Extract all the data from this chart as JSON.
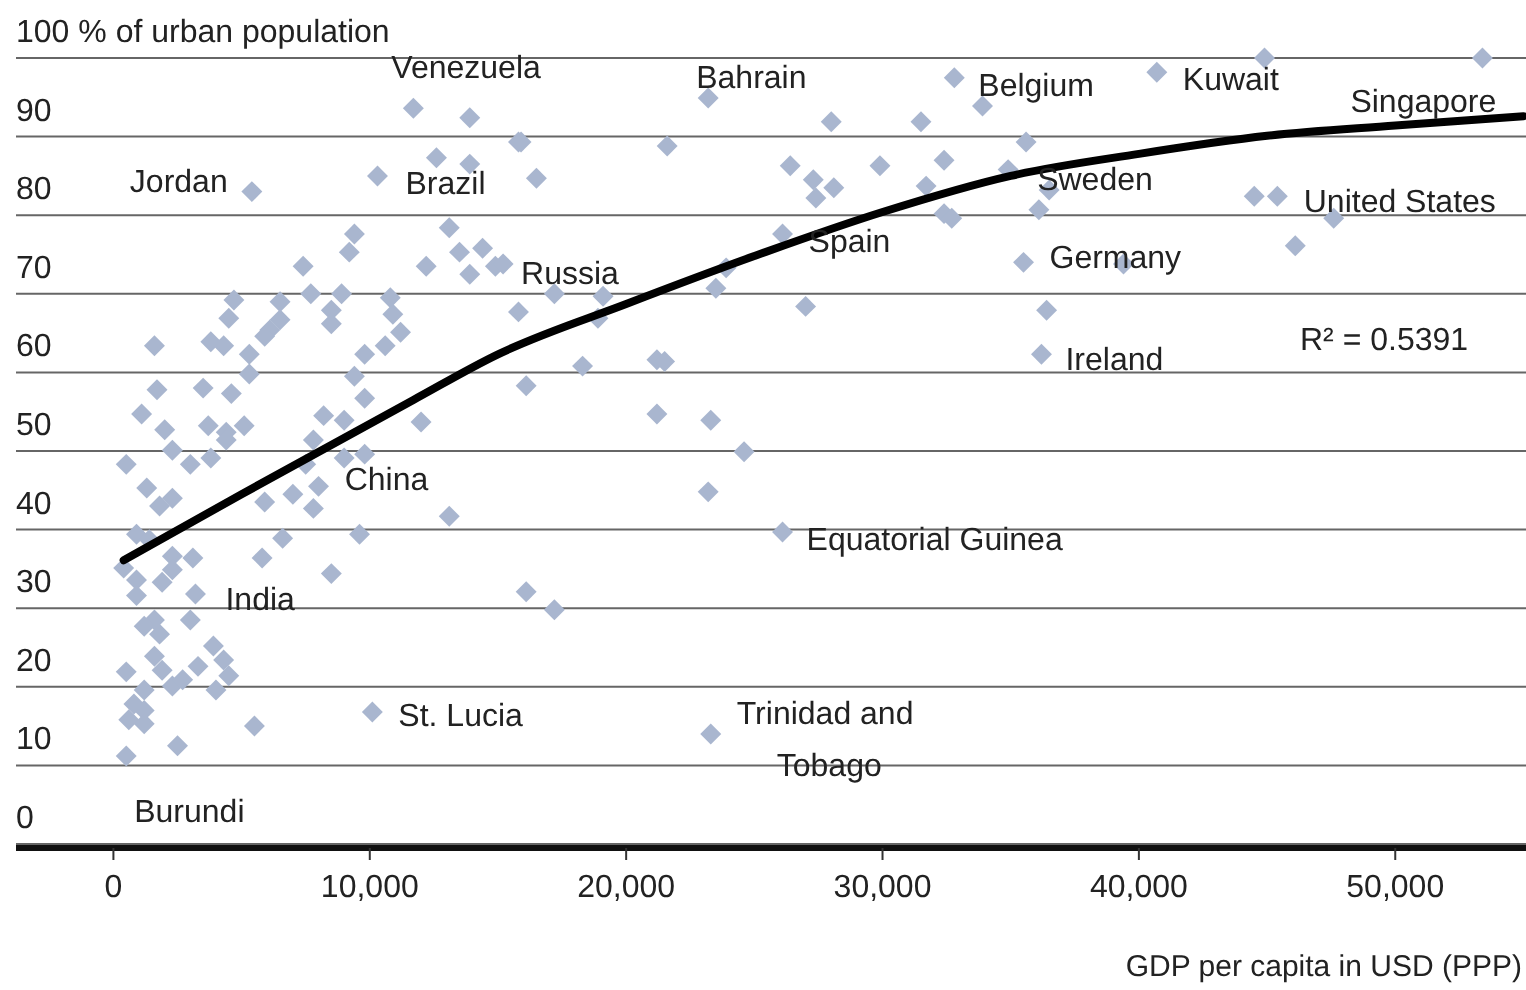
{
  "chart_data": {
    "type": "scatter",
    "xlabel": "GDP per capita in USD (PPP)",
    "xlim": [
      -3800,
      55100
    ],
    "xticks": [
      {
        "value": 0,
        "label": "0"
      },
      {
        "value": 10000,
        "label": "10,000"
      },
      {
        "value": 20000,
        "label": "20,000"
      },
      {
        "value": 30000,
        "label": "30,000"
      },
      {
        "value": 40000,
        "label": "40,000"
      },
      {
        "value": 50000,
        "label": "50,000"
      }
    ],
    "ylim": [
      0,
      100
    ],
    "yticks": [
      0,
      10,
      20,
      30,
      40,
      50,
      60,
      70,
      80,
      90,
      {
        "value": 100,
        "label": "100 % of urban population"
      }
    ],
    "grid": "y",
    "series": [
      {
        "marker": "diamond",
        "color": "#a9b6cf",
        "x": [
          11700,
          13900,
          15800,
          12600,
          13900,
          10300,
          5400,
          13100,
          9400,
          9200,
          13500,
          14400,
          12200,
          13900,
          14900,
          15200,
          7400,
          7700,
          8900,
          4700,
          6500,
          10800,
          8500,
          10900,
          4500,
          8500,
          6500,
          6100,
          5900,
          11200,
          1600,
          3800,
          4300,
          5300,
          10600,
          9800,
          5300,
          9400,
          1700,
          3500,
          4600,
          9800,
          1100,
          3700,
          5100,
          8200,
          9000,
          12000,
          2000,
          4400,
          2300,
          4400,
          7800,
          500,
          3000,
          3800,
          7500,
          9000,
          9800,
          1300,
          2300,
          1800,
          5900,
          7000,
          8000,
          7800,
          13100,
          900,
          1400,
          6600,
          9600,
          400,
          2300,
          3100,
          5800,
          2300,
          1900,
          900,
          8500,
          900,
          3200,
          1600,
          1200,
          1800,
          3000,
          1600,
          3900,
          4300,
          500,
          1900,
          3300,
          4500,
          2300,
          2700,
          4000,
          1200,
          800,
          1200,
          600,
          1200,
          5500,
          10100,
          2500,
          500,
          23200,
          32800,
          33900,
          28000,
          31500,
          15900,
          21600,
          16500,
          26400,
          29900,
          32400,
          27300,
          28100,
          27400,
          31700,
          32400,
          32700,
          26100,
          23900,
          17200,
          19100,
          23500,
          15800,
          18900,
          27000,
          18300,
          21200,
          21500,
          16100,
          21200,
          23300,
          24600,
          23200,
          26100,
          16100,
          17200,
          23300,
          44900,
          53400,
          40700,
          35600,
          34900,
          36500,
          36100,
          44500,
          45400,
          47600,
          46100,
          35500,
          39400,
          36400,
          36200
        ],
        "values": [
          93.6,
          92.4,
          89.3,
          87.3,
          86.5,
          85.0,
          83.0,
          78.4,
          77.6,
          75.3,
          75.3,
          75.8,
          73.5,
          72.5,
          73.5,
          73.8,
          73.5,
          70.0,
          70.0,
          69.2,
          69.0,
          69.5,
          67.9,
          67.4,
          66.9,
          66.2,
          66.7,
          65.4,
          64.6,
          65.1,
          63.4,
          63.9,
          63.4,
          62.3,
          63.4,
          62.3,
          59.8,
          59.5,
          57.8,
          58.0,
          57.3,
          56.7,
          54.7,
          53.2,
          53.2,
          54.5,
          53.9,
          53.7,
          52.7,
          52.4,
          50.1,
          51.4,
          51.4,
          48.3,
          48.3,
          49.1,
          48.3,
          49.1,
          49.6,
          45.3,
          44.0,
          43.0,
          43.5,
          44.5,
          45.5,
          42.7,
          41.7,
          39.4,
          38.7,
          38.9,
          39.4,
          35.1,
          36.6,
          36.4,
          36.4,
          34.9,
          33.3,
          33.6,
          34.4,
          31.6,
          31.8,
          28.5,
          27.7,
          26.7,
          28.5,
          23.9,
          25.2,
          23.4,
          21.9,
          22.1,
          22.6,
          21.4,
          20.1,
          20.9,
          19.6,
          19.6,
          17.8,
          17.0,
          15.8,
          15.3,
          15.0,
          16.8,
          12.5,
          11.2,
          94.9,
          97.5,
          93.9,
          91.9,
          91.9,
          89.3,
          88.8,
          84.7,
          86.3,
          86.3,
          87.0,
          84.5,
          83.5,
          82.2,
          83.7,
          80.2,
          79.6,
          77.6,
          73.3,
          70.0,
          69.7,
          70.7,
          67.7,
          66.9,
          68.4,
          60.8,
          61.6,
          61.4,
          58.3,
          54.7,
          53.9,
          49.9,
          44.8,
          39.7,
          32.1,
          29.8,
          14.0,
          100.0,
          100.0,
          98.2,
          89.3,
          85.8,
          83.2,
          80.7,
          82.4,
          82.4,
          79.6,
          76.1,
          74.0,
          73.8,
          67.9,
          62.3
        ]
      },
      {
        "type": "line",
        "color": "#000000",
        "x": [
          400,
          5000,
          11700,
          15000,
          20000,
          25000,
          30000,
          35000,
          40000,
          45000,
          50000,
          55000
        ],
        "values": [
          36.1,
          44.5,
          56.5,
          62.3,
          68.7,
          74.8,
          80.4,
          85.0,
          87.8,
          90.1,
          91.4,
          92.6
        ]
      }
    ],
    "annotations": [
      {
        "text": "Jordan",
        "x": 5400,
        "y": 83.0
      },
      {
        "text": "Venezuela",
        "x": 11700,
        "y": 93.6
      },
      {
        "text": "Brazil",
        "x": 10300,
        "y": 85.0
      },
      {
        "text": "Bahrain",
        "x": 23200,
        "y": 94.9
      },
      {
        "text": "Belgium",
        "x": 32800,
        "y": 97.5
      },
      {
        "text": "Kuwait",
        "x": 40700,
        "y": 98.2
      },
      {
        "text": "Singapore",
        "x": 53400,
        "y": 100.0
      },
      {
        "text": "Sweden",
        "x": 36500,
        "y": 83.2
      },
      {
        "text": "United States",
        "x": 47600,
        "y": 79.6
      },
      {
        "text": "Spain",
        "x": 26100,
        "y": 77.6
      },
      {
        "text": "Germany",
        "x": 35500,
        "y": 74.0
      },
      {
        "text": "Russia",
        "x": 15200,
        "y": 73.8
      },
      "R² = 0.5391",
      {
        "text": "Ireland",
        "x": 36200,
        "y": 62.3
      },
      {
        "text": "China",
        "x": 9800,
        "y": 49.6
      },
      {
        "text": "Equatorial Guinea",
        "x": 26100,
        "y": 39.7
      },
      {
        "text": "India",
        "x": 3200,
        "y": 31.8
      },
      {
        "text": "St. Lucia",
        "x": 10100,
        "y": 16.8
      },
      {
        "text": "Trinidad and\nTobago",
        "x": 23300,
        "y": 14.0
      },
      {
        "text": "Burundi",
        "x": 500,
        "y": 11.2
      }
    ]
  }
}
